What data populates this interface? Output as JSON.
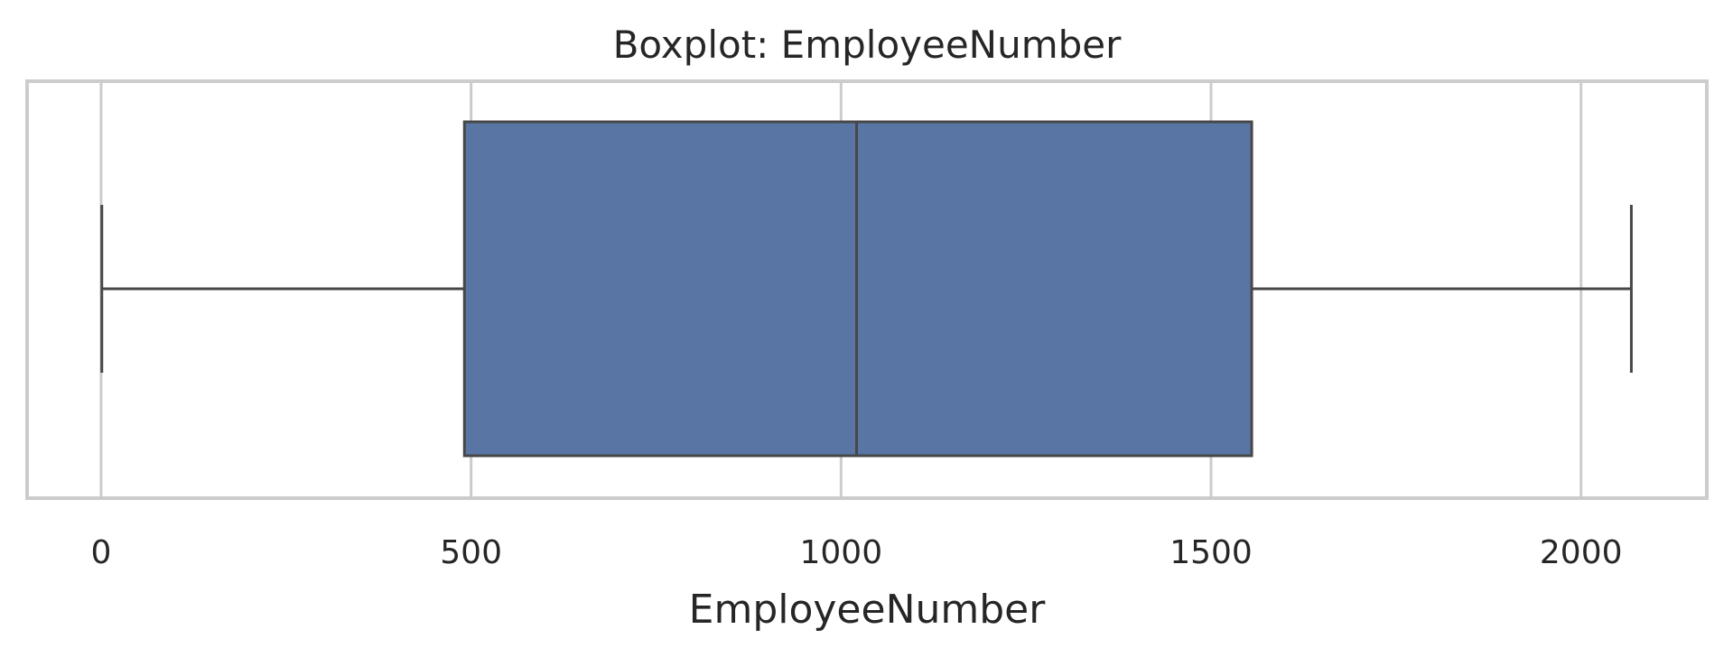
{
  "chart_data": {
    "type": "box",
    "title": "Boxplot: EmployeeNumber",
    "xlabel": "EmployeeNumber",
    "ylabel": "",
    "orientation": "horizontal",
    "xlim": [
      -100,
      2170
    ],
    "xticks": [
      0,
      500,
      1000,
      1500,
      2000
    ],
    "xtick_labels": [
      "0",
      "500",
      "1000",
      "1500",
      "2000"
    ],
    "grid": true,
    "legend": "none",
    "box": {
      "min": 1,
      "q1": 491,
      "median": 1021,
      "q3": 1555,
      "max": 2068
    },
    "colors": {
      "box_fill": "#5975a4",
      "line": "#474747",
      "grid": "#cccccc",
      "frame": "#cccccc",
      "text": "#262626"
    }
  }
}
